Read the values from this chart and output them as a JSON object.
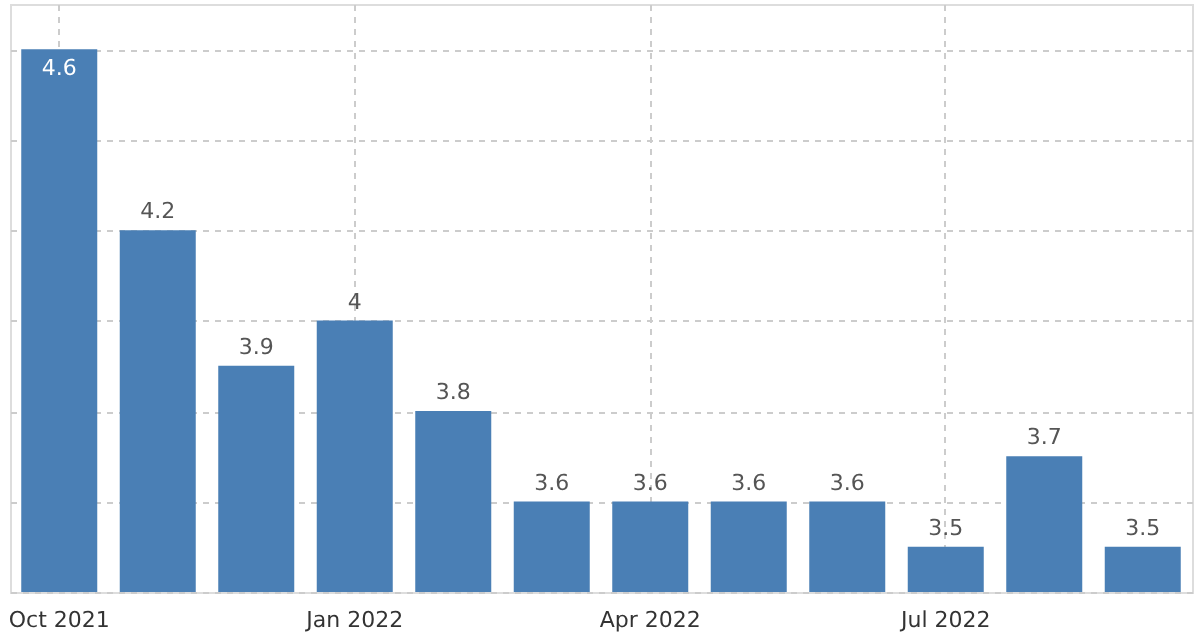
{
  "chart_data": {
    "type": "bar",
    "categories": [
      "Oct 2021",
      null,
      null,
      "Jan 2022",
      null,
      null,
      "Apr 2022",
      null,
      null,
      "Jul 2022",
      null,
      null
    ],
    "values": [
      4.6,
      4.2,
      3.9,
      4.0,
      3.8,
      3.6,
      3.6,
      3.6,
      3.6,
      3.5,
      3.7,
      3.5
    ],
    "value_labels": [
      "4.6",
      "4.2",
      "3.9",
      "4",
      "3.8",
      "3.6",
      "3.6",
      "3.6",
      "3.6",
      "3.5",
      "3.7",
      "3.5"
    ],
    "color": "#4a7fb5",
    "ylim": [
      3.4,
      4.7
    ],
    "yticks": [
      3.4,
      3.6,
      3.8,
      4.0,
      4.2,
      4.4,
      4.6
    ],
    "grid": true,
    "tick_labels": "x"
  }
}
